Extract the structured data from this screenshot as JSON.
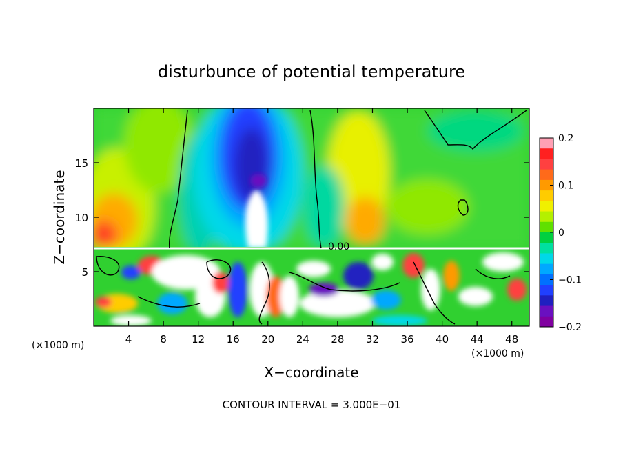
{
  "chart_data": {
    "type": "heatmap",
    "title": "disturbunce of potential temperature",
    "xlabel": "X−coordinate",
    "ylabel": "Z−coordinate",
    "x_unit_left": "(×1000 m)",
    "x_unit_right": "(×1000 m)",
    "xlim": [
      0,
      50
    ],
    "ylim": [
      0,
      20
    ],
    "x_ticks": [
      4,
      8,
      12,
      16,
      20,
      24,
      28,
      32,
      36,
      40,
      44,
      48
    ],
    "y_ticks": [
      5,
      10,
      15
    ],
    "colorbar": {
      "range": [
        -0.2,
        0.2
      ],
      "ticks": [
        0.2,
        0.1,
        0,
        -0.1,
        -0.2
      ],
      "tick_labels": [
        "0.2",
        "0.1",
        "0",
        "−0.1",
        "−0.2"
      ],
      "colors": [
        "#ffa0b4",
        "#ff2020",
        "#ff4040",
        "#ff6a1a",
        "#ff9a00",
        "#ffcc00",
        "#f0f000",
        "#b4f000",
        "#60e000",
        "#00d040",
        "#00e0a0",
        "#00d8e8",
        "#00a8ff",
        "#0070ff",
        "#2040ff",
        "#2020c0",
        "#6a10c0",
        "#8000a0"
      ]
    },
    "contour_label": "0.00",
    "footnote": "CONTOUR INTERVAL = 3.000E−01"
  }
}
